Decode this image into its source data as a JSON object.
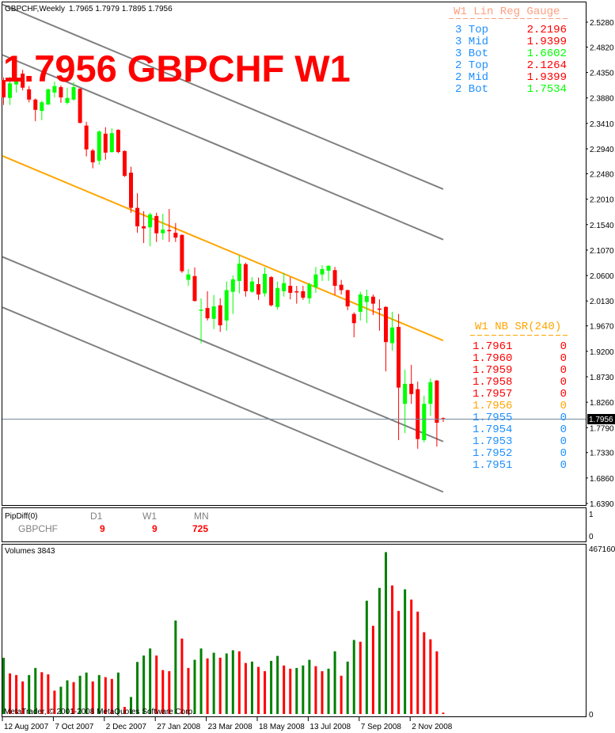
{
  "header": {
    "symbol_period": "GBPCHF,Weekly",
    "ohlc": "1.7965 1.7979 1.7895 1.7956"
  },
  "overlay_title": "1.7956 GBPCHF W1",
  "gauge": {
    "title": "W1 Lin Reg Gauge",
    "title_color": "#ff9f80",
    "rows": [
      {
        "label": "3 Top",
        "value": "2.2196",
        "color": "#ff0000"
      },
      {
        "label": "3 Mid",
        "value": "1.9399",
        "color": "#ff0000"
      },
      {
        "label": "3 Bot",
        "value": "1.6602",
        "color": "#00ff00"
      },
      {
        "label": "2 Top",
        "value": "2.1264",
        "color": "#ff0000"
      },
      {
        "label": "2 Mid",
        "value": "1.9399",
        "color": "#ff0000"
      },
      {
        "label": "2 Bot",
        "value": "1.7534",
        "color": "#00ff00"
      }
    ]
  },
  "sr": {
    "title": "W1 NB SR(240)",
    "rows": [
      {
        "price": "1.7961",
        "count": "0",
        "color": "#ff0000"
      },
      {
        "price": "1.7960",
        "count": "0",
        "color": "#ff0000"
      },
      {
        "price": "1.7959",
        "count": "0",
        "color": "#ff0000"
      },
      {
        "price": "1.7958",
        "count": "0",
        "color": "#ff0000"
      },
      {
        "price": "1.7957",
        "count": "0",
        "color": "#ff0000"
      },
      {
        "price": "1.7956",
        "count": "0",
        "color": "#ffa500"
      },
      {
        "price": "1.7955",
        "count": "0",
        "color": "#1e90ff"
      },
      {
        "price": "1.7954",
        "count": "0",
        "color": "#1e90ff"
      },
      {
        "price": "1.7953",
        "count": "0",
        "color": "#1e90ff"
      },
      {
        "price": "1.7952",
        "count": "0",
        "color": "#1e90ff"
      },
      {
        "price": "1.7951",
        "count": "0",
        "color": "#1e90ff"
      }
    ]
  },
  "current_price": "1.7956",
  "pipdiff": {
    "title": "PipDiff(0)",
    "symbol": "GBPCHF",
    "columns": [
      {
        "label": "D1",
        "value": "9"
      },
      {
        "label": "W1",
        "value": "9"
      },
      {
        "label": "MN",
        "value": "725"
      }
    ],
    "axis": [
      "1",
      "0"
    ]
  },
  "volumes": {
    "title": "Volumes 3843",
    "axis_max_label": "467160",
    "axis_min_label": "0"
  },
  "watermark": "MetaTrader, © 2001-2008 MetaQuotes Software Corp.",
  "colors": {
    "bull_candle": "#00ff00",
    "bear_candle": "#ff0000",
    "volume_up": "#008000",
    "volume_down": "#ff0000",
    "channel": "#808080",
    "channel_mid": "#ffa500"
  },
  "chart_data": [
    {
      "type": "candlestick",
      "title": "GBPCHF,Weekly",
      "y_ticks": [
        "2.5280",
        "2.4820",
        "2.4350",
        "2.3880",
        "2.3410",
        "2.2940",
        "2.2480",
        "2.2010",
        "2.1540",
        "2.1070",
        "2.0600",
        "2.0130",
        "1.9670",
        "1.9200",
        "1.8730",
        "1.8260",
        "1.7790",
        "1.7330",
        "1.6860",
        "1.6390"
      ],
      "ylim": [
        1.639,
        2.528
      ],
      "x_tick_labels": [
        "12 Aug 2007",
        "7 Oct 2007",
        "2 Dec 2007",
        "27 Jan 2008",
        "23 Mar 2008",
        "18 May 2008",
        "13 Jul 2008",
        "7 Sep 2008",
        "2 Nov 2008"
      ],
      "ohlc": [
        [
          2.421,
          2.426,
          2.375,
          2.389
        ],
        [
          2.388,
          2.427,
          2.375,
          2.415
        ],
        [
          2.413,
          2.433,
          2.398,
          2.42
        ],
        [
          2.433,
          2.44,
          2.402,
          2.407
        ],
        [
          2.404,
          2.41,
          2.38,
          2.385
        ],
        [
          2.385,
          2.387,
          2.345,
          2.366
        ],
        [
          2.364,
          2.383,
          2.347,
          2.38
        ],
        [
          2.376,
          2.405,
          2.375,
          2.404
        ],
        [
          2.398,
          2.418,
          2.389,
          2.41
        ],
        [
          2.408,
          2.411,
          2.379,
          2.389
        ],
        [
          2.379,
          2.407,
          2.376,
          2.388
        ],
        [
          2.385,
          2.417,
          2.383,
          2.408
        ],
        [
          2.405,
          2.406,
          2.341,
          2.342
        ],
        [
          2.337,
          2.344,
          2.28,
          2.293
        ],
        [
          2.291,
          2.294,
          2.258,
          2.269
        ],
        [
          2.272,
          2.328,
          2.265,
          2.326
        ],
        [
          2.322,
          2.334,
          2.274,
          2.287
        ],
        [
          2.288,
          2.332,
          2.287,
          2.323
        ],
        [
          2.329,
          2.33,
          2.286,
          2.288
        ],
        [
          2.29,
          2.291,
          2.242,
          2.244
        ],
        [
          2.25,
          2.261,
          2.176,
          2.185
        ],
        [
          2.185,
          2.212,
          2.139,
          2.151
        ],
        [
          2.151,
          2.179,
          2.12,
          2.147
        ],
        [
          2.149,
          2.176,
          2.114,
          2.173
        ],
        [
          2.17,
          2.176,
          2.122,
          2.138
        ],
        [
          2.138,
          2.174,
          2.126,
          2.145
        ],
        [
          2.144,
          2.183,
          2.122,
          2.142
        ],
        [
          2.139,
          2.157,
          2.122,
          2.13
        ],
        [
          2.135,
          2.136,
          2.065,
          2.068
        ],
        [
          2.052,
          2.072,
          2.041,
          2.062
        ],
        [
          2.059,
          2.075,
          2.012,
          2.013
        ],
        [
          1.996,
          2.018,
          1.935,
          1.997
        ],
        [
          2.0,
          2.031,
          1.977,
          1.981
        ],
        [
          1.98,
          2.024,
          1.961,
          2.003
        ],
        [
          2.005,
          2.018,
          1.956,
          1.968
        ],
        [
          1.977,
          2.049,
          1.958,
          2.033
        ],
        [
          2.03,
          2.06,
          1.989,
          2.053
        ],
        [
          2.05,
          2.097,
          2.027,
          2.082
        ],
        [
          2.081,
          2.084,
          2.021,
          2.031
        ],
        [
          2.03,
          2.057,
          2.028,
          2.049
        ],
        [
          2.044,
          2.056,
          2.015,
          2.025
        ],
        [
          2.027,
          2.075,
          2.021,
          2.063
        ],
        [
          2.057,
          2.059,
          2.003,
          2.005
        ],
        [
          2.002,
          2.049,
          1.997,
          2.037
        ],
        [
          2.031,
          2.065,
          2.021,
          2.046
        ],
        [
          2.041,
          2.057,
          2.016,
          2.028
        ],
        [
          2.031,
          2.041,
          2.008,
          2.03
        ],
        [
          2.031,
          2.041,
          2.015,
          2.019
        ],
        [
          2.018,
          2.047,
          2.008,
          2.044
        ],
        [
          2.038,
          2.076,
          2.028,
          2.062
        ],
        [
          2.062,
          2.079,
          2.05,
          2.072
        ],
        [
          2.069,
          2.079,
          2.05,
          2.078
        ],
        [
          2.07,
          2.076,
          2.024,
          2.041
        ],
        [
          2.043,
          2.052,
          2.025,
          2.033
        ],
        [
          2.033,
          2.034,
          1.996,
          2.003
        ],
        [
          1.989,
          1.992,
          1.946,
          1.972
        ],
        [
          1.993,
          2.03,
          1.977,
          2.025
        ],
        [
          2.011,
          2.034,
          1.972,
          2.022
        ],
        [
          2.021,
          2.025,
          1.987,
          2.008
        ],
        [
          1.999,
          2.016,
          1.958,
          1.997
        ],
        [
          2.002,
          2.003,
          1.883,
          1.937
        ],
        [
          1.935,
          1.993,
          1.921,
          1.964
        ],
        [
          1.965,
          1.989,
          1.756,
          1.853
        ],
        [
          1.823,
          1.886,
          1.769,
          1.86
        ],
        [
          1.86,
          1.895,
          1.823,
          1.841
        ],
        [
          1.85,
          1.864,
          1.74,
          1.758
        ],
        [
          1.756,
          1.838,
          1.752,
          1.823
        ],
        [
          1.823,
          1.87,
          1.801,
          1.863
        ],
        [
          1.866,
          1.867,
          1.744,
          1.788
        ],
        [
          1.7965,
          1.7979,
          1.7895,
          1.7956
        ]
      ],
      "regression_channels": [
        {
          "name": "3 Top",
          "end": 2.2196,
          "start": 2.5607,
          "color": "#808080"
        },
        {
          "name": "2 Top",
          "end": 2.1264,
          "start": 2.4675,
          "color": "#808080"
        },
        {
          "name": "Mid",
          "end": 1.9399,
          "start": 2.281,
          "color": "#ffa500"
        },
        {
          "name": "2 Bot",
          "end": 1.7534,
          "start": 2.0945,
          "color": "#808080"
        },
        {
          "name": "3 Bot",
          "end": 1.6602,
          "start": 2.0013,
          "color": "#808080"
        }
      ]
    },
    {
      "type": "bar",
      "title": "Volumes 3843",
      "ylim": [
        0,
        467160
      ],
      "values": [
        158700,
        114700,
        110000,
        92000,
        110000,
        130000,
        118000,
        112000,
        66000,
        77000,
        95000,
        90000,
        108000,
        117000,
        92000,
        110000,
        104000,
        99000,
        117000,
        20000,
        48000,
        147000,
        165000,
        185000,
        165000,
        124000,
        121000,
        264000,
        213000,
        130000,
        153000,
        185000,
        157000,
        173000,
        159000,
        171000,
        180000,
        177000,
        144000,
        148000,
        133000,
        121000,
        150000,
        164000,
        137000,
        128000,
        130000,
        137000,
        153000,
        135000,
        121000,
        128000,
        177000,
        108000,
        148000,
        209000,
        204000,
        320000,
        249000,
        356000,
        457000,
        363000,
        291000,
        352000,
        323000,
        289000,
        231000,
        211000,
        177000,
        3843
      ]
    }
  ]
}
